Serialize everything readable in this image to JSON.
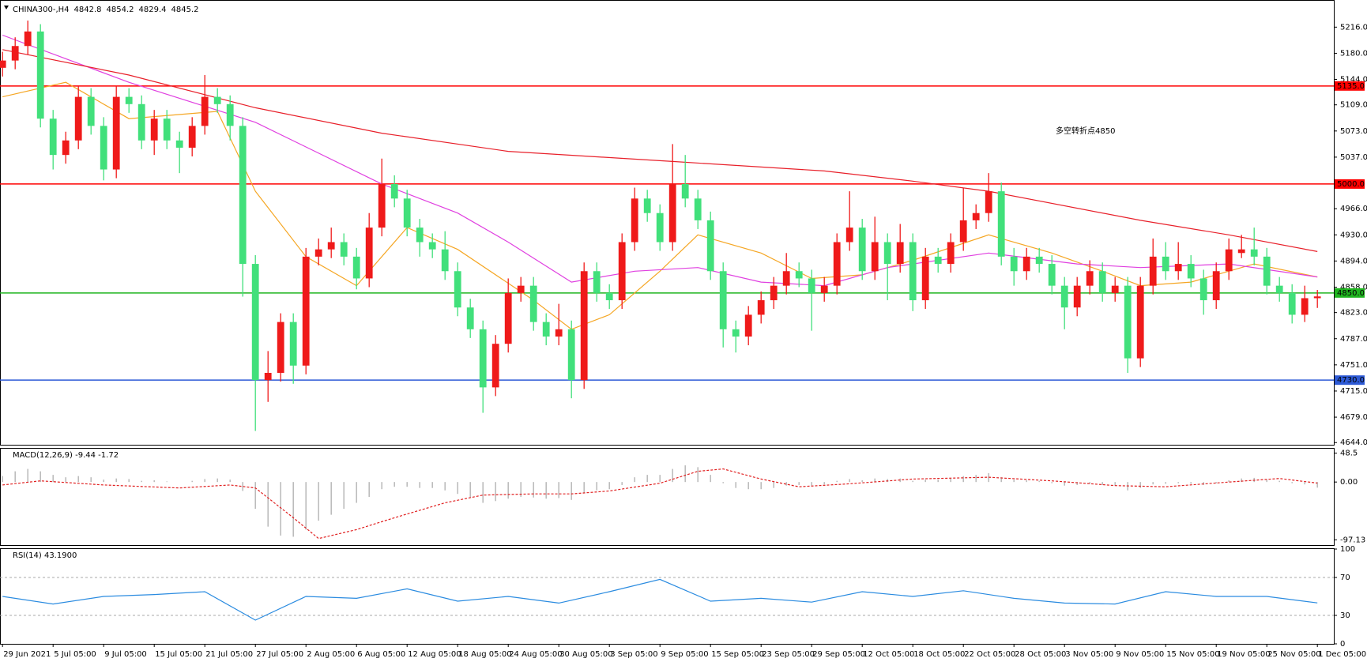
{
  "chart_data": [
    {
      "type": "candlestick",
      "title": "CHINA300-,H4",
      "xlim": [
        -0.2,
        105.3
      ],
      "ylim": [
        4641,
        5249
      ],
      "yticks": [
        {
          "value": 5216,
          "label": "5216.0"
        },
        {
          "value": 5180,
          "label": "5180.0"
        },
        {
          "value": 5144,
          "label": "5144.0"
        },
        {
          "value": 5109,
          "label": "5109.0"
        },
        {
          "value": 5073,
          "label": "5073.0"
        },
        {
          "value": 5037,
          "label": "5037.0"
        },
        {
          "value": 4966,
          "label": "4966.0"
        },
        {
          "value": 4930,
          "label": "4930.0"
        },
        {
          "value": 4894,
          "label": "4894.0"
        },
        {
          "value": 4858,
          "label": "4858.0"
        },
        {
          "value": 4823,
          "label": "4823.0"
        },
        {
          "value": 4787,
          "label": "4787.0"
        },
        {
          "value": 4751,
          "label": "4751.0"
        },
        {
          "value": 4715,
          "label": "4715.0"
        },
        {
          "value": 4679,
          "label": "4679.0"
        },
        {
          "value": 4644,
          "label": "4644.0"
        }
      ],
      "up_color": "#ef1a1a",
      "down_color": "#41e07b",
      "open": [
        5160,
        5170,
        5190,
        5210,
        5090,
        5040,
        5060,
        5120,
        5080,
        5020,
        5120,
        5110,
        5060,
        5090,
        5060,
        5050,
        5080,
        5120,
        5110,
        5080,
        4890,
        4730,
        4740,
        4810,
        4750,
        4900,
        4910,
        4920,
        4900,
        4870,
        4940,
        5000,
        4980,
        4940,
        4920,
        4910,
        4880,
        4830,
        4800,
        4720,
        4780,
        4850,
        4860,
        4810,
        4790,
        4800,
        4730,
        4880,
        4850,
        4840,
        4920,
        4980,
        4960,
        4920,
        5000,
        4980,
        4950,
        4880,
        4800,
        4790,
        4820,
        4840,
        4860,
        4880,
        4870,
        4850,
        4860,
        4920,
        4940,
        4880,
        4920,
        4890,
        4920,
        4840,
        4900,
        4890,
        4920,
        4950,
        4960,
        4990,
        4900,
        4880,
        4900,
        4890,
        4860,
        4830,
        4860,
        4880,
        4850,
        4860,
        4760,
        4860,
        4900,
        4880,
        4890,
        4870,
        4840,
        4880,
        4905,
        4910,
        4900,
        4860,
        4850,
        4820,
        4842.8
      ],
      "high": [
        5182,
        5202,
        5225,
        5220,
        5102,
        5072,
        5135,
        5132,
        5092,
        5135,
        5132,
        5122,
        5102,
        5102,
        5072,
        5092,
        5150,
        5132,
        5122,
        5092,
        4902,
        4770,
        4822,
        4822,
        4912,
        4925,
        4940,
        4932,
        4912,
        4960,
        5035,
        5012,
        4992,
        4952,
        4932,
        4935,
        4892,
        4842,
        4812,
        4792,
        4870,
        4872,
        4872,
        4822,
        4835,
        4812,
        4892,
        4892,
        4862,
        4932,
        4995,
        4992,
        4972,
        5055,
        5040,
        4992,
        4962,
        4892,
        4812,
        4832,
        4852,
        4872,
        4905,
        4892,
        4882,
        4872,
        4932,
        4990,
        4952,
        4955,
        4932,
        4945,
        4932,
        4912,
        4912,
        4932,
        4995,
        4972,
        5015,
        5002,
        4912,
        4912,
        4912,
        4902,
        4872,
        4872,
        4895,
        4892,
        4872,
        4872,
        4872,
        4925,
        4920,
        4920,
        4902,
        4882,
        4892,
        4925,
        4930,
        4940,
        4912,
        4872,
        4862,
        4860,
        4854.2
      ],
      "low": [
        5148,
        5158,
        5178,
        5078,
        5020,
        5028,
        5048,
        5068,
        5005,
        5008,
        5098,
        5048,
        5040,
        5048,
        5015,
        5038,
        5068,
        5098,
        5060,
        4845,
        4660,
        4700,
        4728,
        4725,
        4738,
        4888,
        4898,
        4888,
        4855,
        4858,
        4928,
        4968,
        4928,
        4900,
        4898,
        4868,
        4818,
        4788,
        4685,
        4708,
        4768,
        4838,
        4798,
        4778,
        4778,
        4705,
        4718,
        4838,
        4828,
        4828,
        4908,
        4948,
        4908,
        4908,
        4968,
        4938,
        4868,
        4775,
        4768,
        4778,
        4808,
        4828,
        4848,
        4858,
        4798,
        4838,
        4848,
        4908,
        4868,
        4868,
        4840,
        4878,
        4825,
        4828,
        4878,
        4878,
        4908,
        4938,
        4948,
        4888,
        4860,
        4868,
        4878,
        4848,
        4800,
        4818,
        4848,
        4838,
        4838,
        4740,
        4748,
        4848,
        4868,
        4868,
        4858,
        4820,
        4828,
        4868,
        4898,
        4888,
        4848,
        4838,
        4808,
        4810,
        4829.4
      ],
      "close": [
        5170,
        5190,
        5210,
        5090,
        5040,
        5060,
        5120,
        5080,
        5020,
        5120,
        5110,
        5060,
        5090,
        5060,
        5050,
        5080,
        5120,
        5110,
        5080,
        4890,
        4730,
        4740,
        4810,
        4750,
        4900,
        4910,
        4920,
        4900,
        4870,
        4940,
        5000,
        4980,
        4940,
        4920,
        4910,
        4880,
        4830,
        4800,
        4720,
        4780,
        4850,
        4860,
        4810,
        4790,
        4800,
        4730,
        4880,
        4850,
        4840,
        4920,
        4980,
        4960,
        4920,
        5000,
        4980,
        4950,
        4880,
        4800,
        4790,
        4820,
        4840,
        4860,
        4880,
        4870,
        4850,
        4860,
        4920,
        4940,
        4880,
        4920,
        4890,
        4920,
        4840,
        4900,
        4890,
        4920,
        4950,
        4960,
        4990,
        4900,
        4880,
        4900,
        4890,
        4860,
        4830,
        4860,
        4880,
        4850,
        4860,
        4760,
        4860,
        4900,
        4880,
        4890,
        4870,
        4840,
        4880,
        4910,
        4910,
        4900,
        4860,
        4850,
        4820,
        4842.8,
        4845.2
      ],
      "series": [
        {
          "color": "#f5a623",
          "x": [
            0,
            5,
            10,
            17,
            20,
            24,
            28,
            32,
            36,
            42,
            45,
            48,
            52,
            55,
            60,
            64,
            68,
            72,
            78,
            83,
            87,
            90,
            94,
            99,
            104
          ],
          "values": [
            5120,
            5140,
            5090,
            5100,
            4990,
            4900,
            4860,
            4940,
            4910,
            4840,
            4800,
            4820,
            4880,
            4930,
            4905,
            4870,
            4875,
            4895,
            4930,
            4905,
            4880,
            4860,
            4865,
            4890,
            4872
          ]
        },
        {
          "color": "#e040e0",
          "x": [
            0,
            10,
            20,
            30,
            36,
            40,
            45,
            50,
            55,
            60,
            65,
            70,
            78,
            85,
            90,
            97,
            104
          ],
          "values": [
            5205,
            5140,
            5085,
            5000,
            4960,
            4920,
            4865,
            4880,
            4885,
            4865,
            4860,
            4885,
            4905,
            4890,
            4885,
            4890,
            4872
          ]
        },
        {
          "color": "#e8202a",
          "x": [
            0,
            10,
            20,
            30,
            40,
            53,
            65,
            72,
            78,
            90,
            97,
            104
          ],
          "values": [
            5185,
            5150,
            5105,
            5070,
            5045,
            5031,
            5018,
            5004,
            4990,
            4950,
            4930,
            4907
          ]
        }
      ],
      "levels": [
        {
          "value": 5135,
          "label": "5135.0",
          "color": "#ff0000"
        },
        {
          "value": 5000,
          "label": "5000.0",
          "color": "#ff0000"
        },
        {
          "value": 4850,
          "label": "4850.0",
          "color": "#1fb51f"
        },
        {
          "value": 4730,
          "label": "4730.0",
          "color": "#2d5ad6"
        }
      ],
      "annotation": "多空转折点4850"
    },
    {
      "type": "macd",
      "title": "MACD(12,26,9) -9.44 -1.72",
      "xlim": [
        -0.2,
        105.3
      ],
      "ylim": [
        -106,
        56
      ],
      "yticks": [
        48.5,
        {
          "value": 0,
          "label": "0.00"
        },
        -97.13
      ],
      "histogram_color": "#b8b8b8",
      "histogram": [
        10,
        18,
        22,
        18,
        12,
        8,
        10,
        8,
        4,
        6,
        5,
        2,
        3,
        1,
        0,
        2,
        5,
        6,
        4,
        -15,
        -45,
        -75,
        -90,
        -92,
        -80,
        -65,
        -55,
        -45,
        -35,
        -25,
        -12,
        -8,
        -8,
        -10,
        -10,
        -14,
        -20,
        -26,
        -35,
        -32,
        -28,
        -25,
        -26,
        -28,
        -27,
        -30,
        -18,
        -14,
        -12,
        -5,
        8,
        12,
        12,
        22,
        28,
        25,
        12,
        -2,
        -10,
        -12,
        -12,
        -10,
        -6,
        -5,
        -6,
        -4,
        2,
        5,
        3,
        6,
        5,
        6,
        2,
        4,
        4,
        6,
        10,
        12,
        15,
        8,
        4,
        3,
        2,
        -2,
        -6,
        -5,
        -3,
        -5,
        -6,
        -14,
        -10,
        -4,
        -3,
        -2,
        -3,
        -5,
        -2,
        3,
        6,
        7,
        4,
        2,
        -2,
        -4,
        -9.44
      ],
      "signal": {
        "color": "#e02020",
        "x": [
          0,
          3,
          8,
          14,
          18,
          20,
          23,
          25,
          28,
          31,
          35,
          38,
          42,
          45,
          48,
          52,
          55,
          57,
          60,
          63,
          67,
          72,
          78,
          83,
          88,
          92,
          97,
          101,
          104
        ],
        "values": [
          -5,
          2,
          -5,
          -10,
          -5,
          -10,
          -60,
          -95,
          -80,
          -60,
          -35,
          -22,
          -20,
          -20,
          -15,
          -2,
          18,
          22,
          5,
          -8,
          -3,
          5,
          8,
          2,
          -6,
          -8,
          0,
          6,
          -1.72
        ]
      }
    },
    {
      "type": "line",
      "title": "RSI(14) 43.1900",
      "xlim": [
        -0.2,
        105.3
      ],
      "ylim": [
        0,
        100
      ],
      "yticks": [
        100,
        70,
        30,
        0
      ],
      "dashed_levels": [
        70,
        30
      ],
      "color": "#2a8be0",
      "x": [
        0,
        4,
        8,
        12,
        16,
        20,
        24,
        28,
        32,
        36,
        40,
        44,
        48,
        52,
        56,
        60,
        64,
        68,
        72,
        76,
        80,
        84,
        88,
        92,
        96,
        100,
        104
      ],
      "values": [
        50,
        42,
        50,
        52,
        55,
        25,
        50,
        48,
        58,
        45,
        50,
        43,
        55,
        68,
        45,
        48,
        44,
        55,
        50,
        56,
        48,
        43,
        42,
        55,
        50,
        50,
        43.19
      ],
      "xticks": [
        {
          "value": 0,
          "label": "29 Jun 2021"
        },
        {
          "value": 4,
          "label": "5 Jul 05:00"
        },
        {
          "value": 8,
          "label": "9 Jul 05:00"
        },
        {
          "value": 12,
          "label": "15 Jul 05:00"
        },
        {
          "value": 16,
          "label": "21 Jul 05:00"
        },
        {
          "value": 20,
          "label": "27 Jul 05:00"
        },
        {
          "value": 24,
          "label": "2 Aug 05:00"
        },
        {
          "value": 28,
          "label": "6 Aug 05:00"
        },
        {
          "value": 32,
          "label": "12 Aug 05:00"
        },
        {
          "value": 36,
          "label": "18 Aug 05:00"
        },
        {
          "value": 40,
          "label": "24 Aug 05:00"
        },
        {
          "value": 44,
          "label": "30 Aug 05:00"
        },
        {
          "value": 48,
          "label": "3 Sep 05:00"
        },
        {
          "value": 52,
          "label": "9 Sep 05:00"
        },
        {
          "value": 56,
          "label": "15 Sep 05:00"
        },
        {
          "value": 60,
          "label": "23 Sep 05:00"
        },
        {
          "value": 64,
          "label": "29 Sep 05:00"
        },
        {
          "value": 68,
          "label": "12 Oct 05:00"
        },
        {
          "value": 72,
          "label": "18 Oct 05:00"
        },
        {
          "value": 76,
          "label": "22 Oct 05:00"
        },
        {
          "value": 80,
          "label": "28 Oct 05:00"
        },
        {
          "value": 84,
          "label": "3 Nov 05:00"
        },
        {
          "value": 88,
          "label": "9 Nov 05:00"
        },
        {
          "value": 92,
          "label": "15 Nov 05:00"
        },
        {
          "value": 96,
          "label": "19 Nov 05:00"
        },
        {
          "value": 100,
          "label": "25 Nov 05:00"
        },
        {
          "value": 104,
          "label": "1 Dec 05:00"
        }
      ]
    }
  ]
}
